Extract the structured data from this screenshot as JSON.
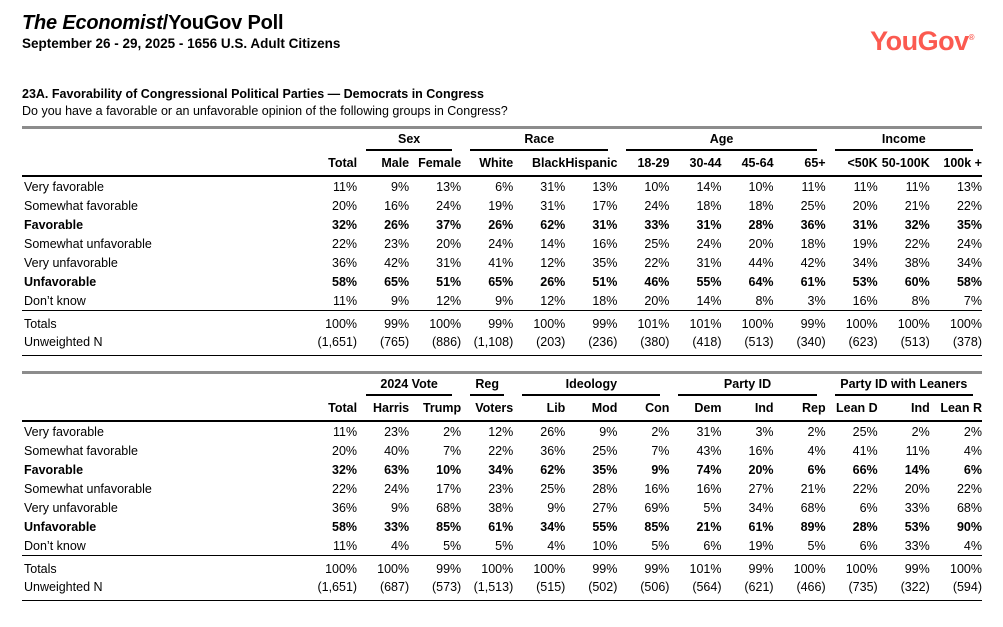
{
  "colors": {
    "logo": "#fb5a50",
    "rule_gray": "#8c8c8c"
  },
  "header": {
    "title_italic": "The Economist",
    "title_rest": "/YouGov Poll",
    "subtitle": "September 26 - 29, 2025 - 1656 U.S. Adult Citizens",
    "logo_text": "YouGov",
    "logo_mark": "®"
  },
  "question": {
    "title": "23A. Favorability of Congressional Political Parties — Democrats in Congress",
    "text": "Do you have a favorable or an unfavorable opinion of the following groups in Congress?"
  },
  "tables": [
    {
      "total_label": "Total",
      "groups": [
        {
          "label": "Sex",
          "cols": [
            "Male",
            "Female"
          ]
        },
        {
          "label": "Race",
          "cols": [
            "White",
            "Black",
            "Hispanic"
          ]
        },
        {
          "label": "Age",
          "cols": [
            "18-29",
            "30-44",
            "45-64",
            "65+"
          ]
        },
        {
          "label": "Income",
          "cols": [
            "<50K",
            "50-100K",
            "100k +"
          ]
        }
      ],
      "rows": [
        {
          "label": "Very favorable",
          "bold": false,
          "values": [
            "11%",
            "9%",
            "13%",
            "6%",
            "31%",
            "13%",
            "10%",
            "14%",
            "10%",
            "11%",
            "11%",
            "11%",
            "13%"
          ]
        },
        {
          "label": "Somewhat favorable",
          "bold": false,
          "values": [
            "20%",
            "16%",
            "24%",
            "19%",
            "31%",
            "17%",
            "24%",
            "18%",
            "18%",
            "25%",
            "20%",
            "21%",
            "22%"
          ]
        },
        {
          "label": "Favorable",
          "bold": true,
          "values": [
            "32%",
            "26%",
            "37%",
            "26%",
            "62%",
            "31%",
            "33%",
            "31%",
            "28%",
            "36%",
            "31%",
            "32%",
            "35%"
          ]
        },
        {
          "label": "Somewhat unfavorable",
          "bold": false,
          "values": [
            "22%",
            "23%",
            "20%",
            "24%",
            "14%",
            "16%",
            "25%",
            "24%",
            "20%",
            "18%",
            "19%",
            "22%",
            "24%"
          ]
        },
        {
          "label": "Very unfavorable",
          "bold": false,
          "values": [
            "36%",
            "42%",
            "31%",
            "41%",
            "12%",
            "35%",
            "22%",
            "31%",
            "44%",
            "42%",
            "34%",
            "38%",
            "34%"
          ]
        },
        {
          "label": "Unfavorable",
          "bold": true,
          "values": [
            "58%",
            "65%",
            "51%",
            "65%",
            "26%",
            "51%",
            "46%",
            "55%",
            "64%",
            "61%",
            "53%",
            "60%",
            "58%"
          ]
        },
        {
          "label": "Don’t know",
          "bold": false,
          "values": [
            "11%",
            "9%",
            "12%",
            "9%",
            "12%",
            "18%",
            "20%",
            "14%",
            "8%",
            "3%",
            "16%",
            "8%",
            "7%"
          ]
        }
      ],
      "totals_row": {
        "label": "Totals",
        "values": [
          "100%",
          "99%",
          "100%",
          "99%",
          "100%",
          "99%",
          "101%",
          "101%",
          "100%",
          "99%",
          "100%",
          "100%",
          "100%"
        ]
      },
      "unweighted_row": {
        "label": "Unweighted N",
        "values": [
          "(1,651)",
          "(765)",
          "(886)",
          "(1,108)",
          "(203)",
          "(236)",
          "(380)",
          "(418)",
          "(513)",
          "(340)",
          "(623)",
          "(513)",
          "(378)"
        ]
      }
    },
    {
      "total_label": "Total",
      "groups": [
        {
          "label": "2024 Vote",
          "cols": [
            "Harris",
            "Trump"
          ]
        },
        {
          "label": "Reg",
          "cols": [
            "Voters"
          ]
        },
        {
          "label": "Ideology",
          "cols": [
            "Lib",
            "Mod",
            "Con"
          ]
        },
        {
          "label": "Party ID",
          "cols": [
            "Dem",
            "Ind",
            "Rep"
          ]
        },
        {
          "label": "Party ID with Leaners",
          "cols": [
            "Lean D",
            "Ind",
            "Lean R"
          ]
        }
      ],
      "rows": [
        {
          "label": "Very favorable",
          "bold": false,
          "values": [
            "11%",
            "23%",
            "2%",
            "12%",
            "26%",
            "9%",
            "2%",
            "31%",
            "3%",
            "2%",
            "25%",
            "2%",
            "2%"
          ]
        },
        {
          "label": "Somewhat favorable",
          "bold": false,
          "values": [
            "20%",
            "40%",
            "7%",
            "22%",
            "36%",
            "25%",
            "7%",
            "43%",
            "16%",
            "4%",
            "41%",
            "11%",
            "4%"
          ]
        },
        {
          "label": "Favorable",
          "bold": true,
          "values": [
            "32%",
            "63%",
            "10%",
            "34%",
            "62%",
            "35%",
            "9%",
            "74%",
            "20%",
            "6%",
            "66%",
            "14%",
            "6%"
          ]
        },
        {
          "label": "Somewhat unfavorable",
          "bold": false,
          "values": [
            "22%",
            "24%",
            "17%",
            "23%",
            "25%",
            "28%",
            "16%",
            "16%",
            "27%",
            "21%",
            "22%",
            "20%",
            "22%"
          ]
        },
        {
          "label": "Very unfavorable",
          "bold": false,
          "values": [
            "36%",
            "9%",
            "68%",
            "38%",
            "9%",
            "27%",
            "69%",
            "5%",
            "34%",
            "68%",
            "6%",
            "33%",
            "68%"
          ]
        },
        {
          "label": "Unfavorable",
          "bold": true,
          "values": [
            "58%",
            "33%",
            "85%",
            "61%",
            "34%",
            "55%",
            "85%",
            "21%",
            "61%",
            "89%",
            "28%",
            "53%",
            "90%"
          ]
        },
        {
          "label": "Don’t know",
          "bold": false,
          "values": [
            "11%",
            "4%",
            "5%",
            "5%",
            "4%",
            "10%",
            "5%",
            "6%",
            "19%",
            "5%",
            "6%",
            "33%",
            "4%"
          ]
        }
      ],
      "totals_row": {
        "label": "Totals",
        "values": [
          "100%",
          "100%",
          "99%",
          "100%",
          "100%",
          "99%",
          "99%",
          "101%",
          "99%",
          "100%",
          "100%",
          "99%",
          "100%"
        ]
      },
      "unweighted_row": {
        "label": "Unweighted N",
        "values": [
          "(1,651)",
          "(687)",
          "(573)",
          "(1,513)",
          "(515)",
          "(502)",
          "(506)",
          "(564)",
          "(621)",
          "(466)",
          "(735)",
          "(322)",
          "(594)"
        ]
      }
    }
  ]
}
